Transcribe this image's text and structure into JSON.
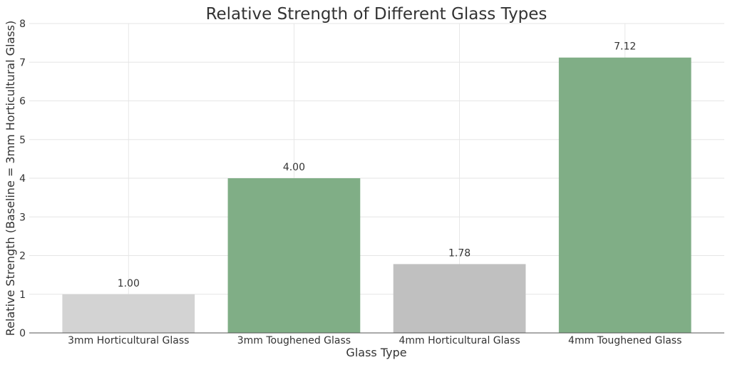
{
  "chart_data": {
    "type": "bar",
    "title": "Relative Strength of Different Glass Types",
    "xlabel": "Glass Type",
    "ylabel": "Relative Strength (Baseline = 3mm Horticultural Glass)",
    "categories": [
      "3mm Horticultural Glass",
      "3mm Toughened Glass",
      "4mm Horticultural Glass",
      "4mm Toughened Glass"
    ],
    "values": [
      1.0,
      4.0,
      1.78,
      7.12
    ],
    "data_labels": [
      "1.00",
      "4.00",
      "1.78",
      "7.12"
    ],
    "bar_colors": [
      "#d3d3d3",
      "#80ae86",
      "#c0c0c0",
      "#80ae86"
    ],
    "ylim": [
      0,
      8
    ],
    "yticks": [
      0,
      1,
      2,
      3,
      4,
      5,
      6,
      7,
      8
    ],
    "grid": true,
    "legend": "none"
  }
}
